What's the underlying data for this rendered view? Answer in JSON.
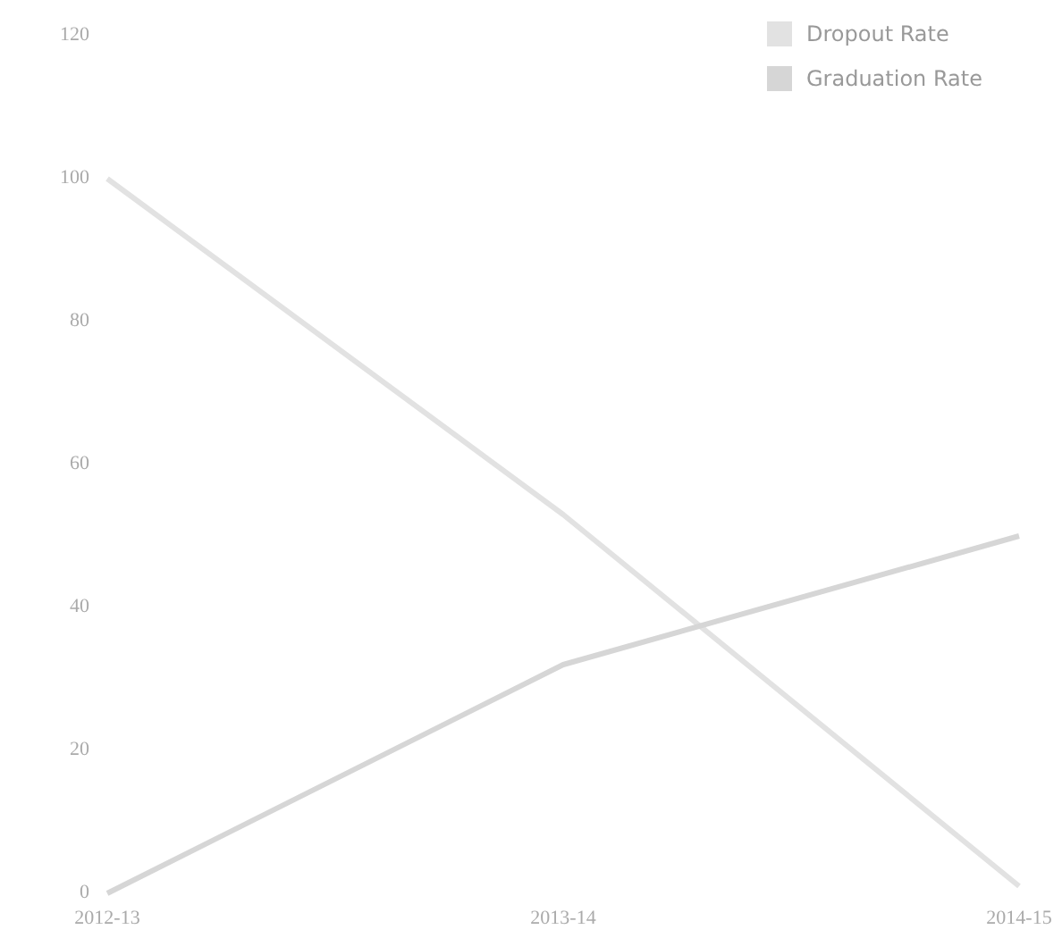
{
  "chart_data": {
    "type": "line",
    "categories": [
      "2012-13",
      "2013-14",
      "2014-15"
    ],
    "series": [
      {
        "name": "Dropout Rate",
        "color": "#e2e2e2",
        "values": [
          100,
          53,
          1
        ]
      },
      {
        "name": "Graduation Rate",
        "color": "#d6d6d6",
        "values": [
          0,
          32,
          50
        ]
      }
    ],
    "ylim": [
      0,
      120
    ],
    "yticks": [
      0,
      20,
      40,
      60,
      80,
      100,
      120
    ],
    "legend": "top right"
  }
}
